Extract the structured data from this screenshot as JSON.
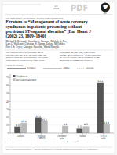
{
  "chart_data": {
    "type": "bar",
    "categories": [
      "Aspirin",
      "Heparin\nLMWH",
      "Thrombo-\nlytics",
      "Statins",
      "P2Y12\ninhib."
    ],
    "series": [
      {
        "name": "Tirofiban",
        "color": "#555555",
        "values": [
          8.3,
          19.2,
          null,
          5.5,
          63.4
        ],
        "value_labels": [
          "8.3",
          "19.2",
          null,
          "5.5",
          "63.4"
        ]
      },
      {
        "name": "Active treatment",
        "color": "#bbbbbb",
        "values": [
          13.0,
          15.1,
          9.1,
          8.5,
          11.1
        ],
        "value_labels": [
          "13.0",
          "15.1",
          "9.1",
          "8.5",
          "11.1"
        ]
      }
    ],
    "ylim": [
      0,
      75
    ],
    "yticks": [
      0,
      10,
      20,
      30,
      40,
      50,
      60,
      70
    ],
    "grid": true,
    "legend": "upper left",
    "data_labels": true,
    "annotations": [
      "23",
      "2003",
      "♥",
      "ESC",
      "PDF",
      "The European Society of Cardiology and the Publisher regret that an erratum as published in European",
      "Heart Journal (2002) 23, 969 was incorrect. The correct erratum is presented below.",
      "Erratum to “Management of acute coronary",
      "syndromes in patients presenting without",
      "persistent ST-segment elevation” [Eur Heart J",
      "(2002) 23, 1809–1840]",
      "Michael E. Bertrand¹, Jonathan L. Simoons, Keith A. A. Fox,",
      "Lars C. Wallentin, Christian W. Hamm, Eugene McFadden,",
      "Pim J. de Feyter, Giuseppe Specchia, Witold Ruzyllo",
      "The European Society of Cardiology and the",
      "Publisher regret that in the last focus report, one",
      "incorrect figure have been published. Fig. 2 (page",
      "1820) should be replaced by the figure below.",
      "Furthermore, on page 1823, in the second",
      "column, line 21 should read: ‘in these guidelines,",
      "the level of evidence and the strength of recom-",
      "mendations are summarised in table II’.",
      "¹ Corresponding author at: A. Himstra’s Hospital, Cardiovascular Department of Cardiology, Reference: B. St",
      "Germany. (M.E. Bertrand)",
      "Tirofiban",
      "LMWH",
      "Controls",
      "Fig. 2. Result of % of patients with elevated troponin by contemporary LMWH.  ■ Tirofiban;  □ Active treatment.",
      "DOI: 10.1016/S0195-668X(03)00036-6  © 2003 The European Society of Cardiology. Published by Elsevier Science Ltd. All rights reserved."
    ]
  }
}
